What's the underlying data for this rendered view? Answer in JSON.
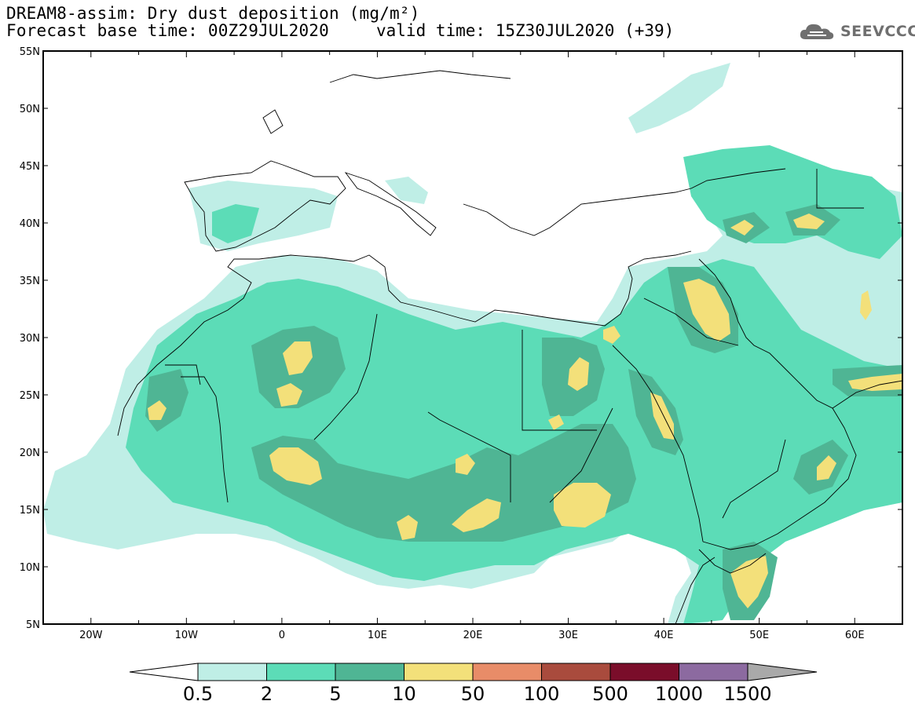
{
  "header": {
    "title_line_1": "DREAM8-assim: Dry dust deposition (mg/m²)",
    "title_line_2": "Forecast base time: 00Z29JUL2020",
    "valid_time": "valid time: 15Z30JUL2020 (+39)"
  },
  "logo": {
    "text": "SEEVCCC",
    "icon": "cloud-icon"
  },
  "map": {
    "region": "North Africa, Europe and Middle East",
    "lon_range": [
      -25,
      65
    ],
    "lat_range": [
      5,
      55
    ],
    "lat_labels": [
      "55N",
      "50N",
      "45N",
      "40N",
      "35N",
      "30N",
      "25N",
      "20N",
      "15N",
      "10N",
      "5N"
    ],
    "lon_labels": [
      "20W",
      "10W",
      "0",
      "10E",
      "20E",
      "30E",
      "40E",
      "50E",
      "60E"
    ]
  },
  "legend": {
    "labels": [
      "0.5",
      "2",
      "5",
      "10",
      "50",
      "100",
      "500",
      "1000",
      "1500"
    ],
    "colors": [
      "#bfeee6",
      "#5cdcb7",
      "#4fb594",
      "#f3e07a",
      "#e88c68",
      "#a94b3d",
      "#7a0d2a",
      "#8c6aa0",
      "#a9a9a9"
    ],
    "under_color": "#ffffff",
    "over_color": "#a9a9a9"
  }
}
